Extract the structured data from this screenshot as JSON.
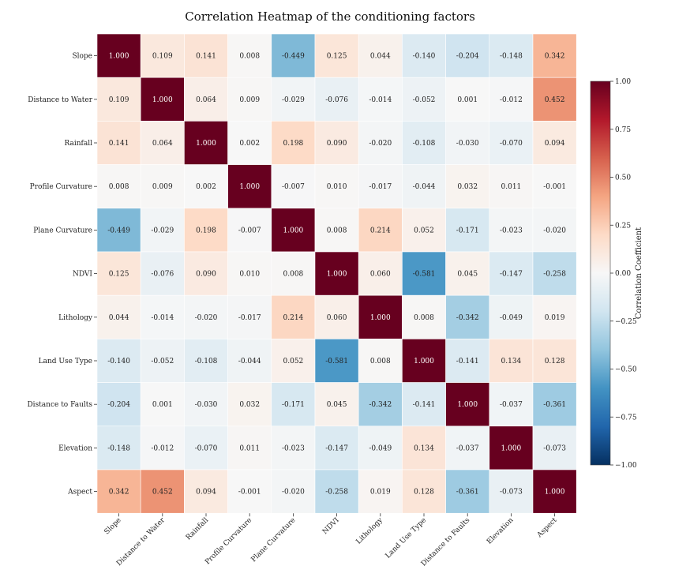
{
  "chart_data": {
    "type": "heatmap",
    "title": "Correlation Heatmap of the conditioning factors",
    "xlabel": "",
    "ylabel": "",
    "labels": [
      "Slope",
      "Distance to Water",
      "Rainfall",
      "Profile Curvature",
      "Plane Curvature",
      "NDVI",
      "Lithology",
      "Land Use Type",
      "Distance to Faults",
      "Elevation",
      "Aspect"
    ],
    "matrix": [
      [
        1.0,
        0.109,
        0.141,
        0.008,
        -0.449,
        0.125,
        0.044,
        -0.14,
        -0.204,
        -0.148,
        0.342
      ],
      [
        0.109,
        1.0,
        0.064,
        0.009,
        -0.029,
        -0.076,
        -0.014,
        -0.052,
        0.001,
        -0.012,
        0.452
      ],
      [
        0.141,
        0.064,
        1.0,
        0.002,
        0.198,
        0.09,
        -0.02,
        -0.108,
        -0.03,
        -0.07,
        0.094
      ],
      [
        0.008,
        0.009,
        0.002,
        1.0,
        -0.007,
        0.01,
        -0.017,
        -0.044,
        0.032,
        0.011,
        -0.001
      ],
      [
        -0.449,
        -0.029,
        0.198,
        -0.007,
        1.0,
        0.008,
        0.214,
        0.052,
        -0.171,
        -0.023,
        -0.02
      ],
      [
        0.125,
        -0.076,
        0.09,
        0.01,
        0.008,
        1.0,
        0.06,
        -0.581,
        0.045,
        -0.147,
        -0.258
      ],
      [
        0.044,
        -0.014,
        -0.02,
        -0.017,
        0.214,
        0.06,
        1.0,
        0.008,
        -0.342,
        -0.049,
        0.019
      ],
      [
        -0.14,
        -0.052,
        -0.108,
        -0.044,
        0.052,
        -0.581,
        0.008,
        1.0,
        -0.141,
        0.134,
        0.128
      ],
      [
        -0.204,
        0.001,
        -0.03,
        0.032,
        -0.171,
        0.045,
        -0.342,
        -0.141,
        1.0,
        -0.037,
        -0.361
      ],
      [
        -0.148,
        -0.012,
        -0.07,
        0.011,
        -0.023,
        -0.147,
        -0.049,
        0.134,
        -0.037,
        1.0,
        -0.073
      ],
      [
        0.342,
        0.452,
        0.094,
        -0.001,
        -0.02,
        -0.258,
        0.019,
        0.128,
        -0.361,
        -0.073,
        1.0
      ]
    ],
    "colorbar": {
      "label": "Correlation Coefficient",
      "range": [
        -1,
        1
      ],
      "ticks": [
        "1.00",
        "0.75",
        "0.50",
        "0.25",
        "0.00",
        "−0.25",
        "−0.50",
        "−0.75",
        "−1.00"
      ],
      "tick_values": [
        1.0,
        0.75,
        0.5,
        0.25,
        0.0,
        -0.25,
        -0.5,
        -0.75,
        -1.0
      ]
    },
    "colormap": "RdBu_r",
    "colors": [
      "#053061",
      "#2166ac",
      "#4393c3",
      "#92c5de",
      "#d1e5f0",
      "#f7f7f7",
      "#fddbc7",
      "#f4a582",
      "#d6604d",
      "#b2182b",
      "#67001f"
    ],
    "value_format": "3 decimals"
  }
}
